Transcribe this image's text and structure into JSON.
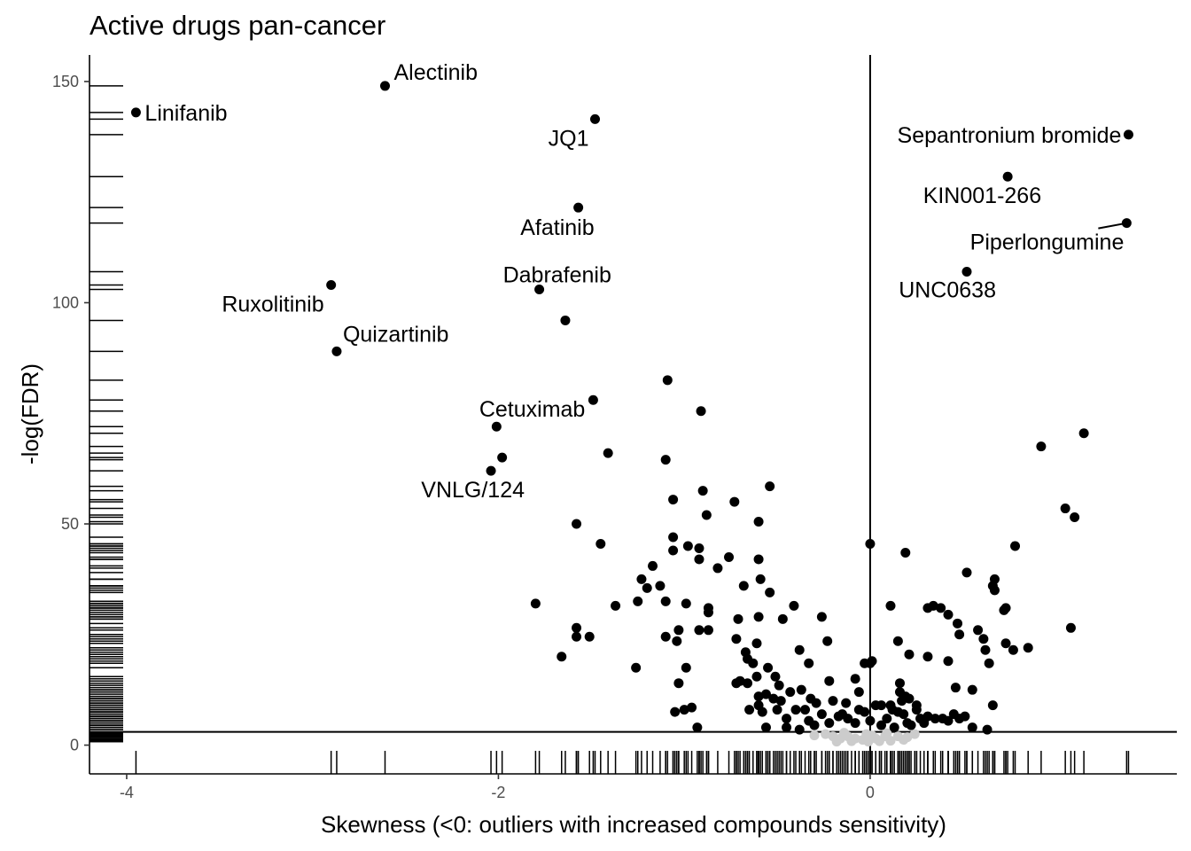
{
  "chart_data": {
    "type": "scatter",
    "title": "Active drugs pan-cancer",
    "xlabel": "Skewness (<0: outliers with increased compounds sensitivity)",
    "ylabel": "-log(FDR)",
    "xlim": [
      -4.2,
      1.65
    ],
    "ylim": [
      -6.5,
      156
    ],
    "x_ticks": [
      -4,
      -2,
      0
    ],
    "y_ticks": [
      0,
      50,
      100,
      150
    ],
    "x_tick_labels": [
      "-4",
      "-2",
      "0"
    ],
    "y_tick_labels": [
      "0",
      "50",
      "100",
      "150"
    ],
    "hline": 3,
    "vline": 0,
    "rug": true,
    "grid": false,
    "legend": "none",
    "colors": {
      "significant": "#000000",
      "non_significant": "#cccccc"
    },
    "labeled_points": [
      {
        "label": "Alectinib",
        "x": -2.61,
        "y": 149
      },
      {
        "label": "Linifanib",
        "x": -3.95,
        "y": 143
      },
      {
        "label": "JQ1",
        "x": -1.48,
        "y": 141.5
      },
      {
        "label": "Sepantronium bromide",
        "x": 1.39,
        "y": 138
      },
      {
        "label": "KIN001-266",
        "x": 0.74,
        "y": 128.5
      },
      {
        "label": "Afatinib",
        "x": -1.57,
        "y": 121.5
      },
      {
        "label": "Piperlongumine",
        "x": 1.38,
        "y": 118
      },
      {
        "label": "UNC0638",
        "x": 0.52,
        "y": 107
      },
      {
        "label": "Ruxolitinib",
        "x": -2.9,
        "y": 104
      },
      {
        "label": "Dabrafenib",
        "x": -1.78,
        "y": 103
      },
      {
        "label": "Quizartinib",
        "x": -2.87,
        "y": 89
      },
      {
        "label": "Cetuximab",
        "x": -2.01,
        "y": 72
      },
      {
        "label": "VNLG/124",
        "x": -2.04,
        "y": 62
      }
    ],
    "points_significant": [
      [
        -1.64,
        96
      ],
      [
        -1.49,
        78
      ],
      [
        -1.98,
        65
      ],
      [
        -1.09,
        82.5
      ],
      [
        -0.91,
        75.5
      ],
      [
        -1.41,
        66
      ],
      [
        -1.1,
        64.5
      ],
      [
        -1.58,
        50
      ],
      [
        -1.45,
        45.5
      ],
      [
        -1.06,
        55.5
      ],
      [
        -0.9,
        57.5
      ],
      [
        -0.54,
        58.5
      ],
      [
        -0.73,
        55
      ],
      [
        -0.6,
        50.5
      ],
      [
        -0.88,
        52
      ],
      [
        -0.98,
        45
      ],
      [
        -1.06,
        47
      ],
      [
        -1.06,
        44
      ],
      [
        -0.92,
        44.5
      ],
      [
        -0.92,
        42
      ],
      [
        -0.76,
        42.5
      ],
      [
        -0.82,
        40
      ],
      [
        -0.6,
        42
      ],
      [
        -0.59,
        37.5
      ],
      [
        -0.54,
        34.5
      ],
      [
        -0.68,
        36
      ],
      [
        -1.17,
        40.5
      ],
      [
        -1.23,
        37.5
      ],
      [
        -1.2,
        35.5
      ],
      [
        -1.13,
        36
      ],
      [
        -1.25,
        32.5
      ],
      [
        -1.1,
        32.5
      ],
      [
        -0.99,
        32
      ],
      [
        -0.87,
        31
      ],
      [
        -0.87,
        30
      ],
      [
        -0.92,
        26
      ],
      [
        -0.87,
        26
      ],
      [
        -0.71,
        28.5
      ],
      [
        -0.6,
        29
      ],
      [
        -0.47,
        28.5
      ],
      [
        -0.41,
        31.5
      ],
      [
        -0.26,
        29
      ],
      [
        -1.37,
        31.5
      ],
      [
        -1.8,
        32
      ],
      [
        -1.58,
        26.5
      ],
      [
        -1.58,
        24.5
      ],
      [
        -1.51,
        24.5
      ],
      [
        -1.66,
        20
      ],
      [
        -1.26,
        17.5
      ],
      [
        -1.1,
        24.5
      ],
      [
        -1.03,
        26
      ],
      [
        -1.04,
        23.5
      ],
      [
        -0.72,
        24
      ],
      [
        -0.61,
        23
      ],
      [
        -0.66,
        19.5
      ],
      [
        -0.67,
        21
      ],
      [
        -0.63,
        18.5
      ],
      [
        -0.55,
        17.5
      ],
      [
        -0.51,
        15.5
      ],
      [
        -0.49,
        13.5
      ],
      [
        -0.38,
        21.5
      ],
      [
        -0.33,
        18.5
      ],
      [
        -0.23,
        23.5
      ],
      [
        -0.22,
        14.5
      ],
      [
        -0.08,
        15
      ],
      [
        -0.03,
        18.5
      ],
      [
        -0.99,
        17.5
      ],
      [
        -1.03,
        14
      ],
      [
        -1.0,
        8
      ],
      [
        -0.96,
        8.5
      ],
      [
        -1.05,
        7.5
      ],
      [
        -0.93,
        4
      ],
      [
        -0.7,
        14.5
      ],
      [
        -0.72,
        14
      ],
      [
        -0.66,
        14
      ],
      [
        -0.61,
        15.5
      ],
      [
        -0.6,
        11
      ],
      [
        -0.56,
        11.5
      ],
      [
        -0.52,
        10.5
      ],
      [
        -0.48,
        10
      ],
      [
        -0.43,
        12
      ],
      [
        -0.37,
        12.5
      ],
      [
        -0.32,
        10.5
      ],
      [
        -0.29,
        9.5
      ],
      [
        -0.2,
        10
      ],
      [
        -0.13,
        9.5
      ],
      [
        -0.06,
        8
      ],
      [
        -0.65,
        8
      ],
      [
        -0.58,
        7.5
      ],
      [
        -0.56,
        4
      ],
      [
        -0.45,
        4
      ],
      [
        -0.38,
        3.5
      ],
      [
        -0.33,
        5.5
      ],
      [
        -0.3,
        4.5
      ],
      [
        -0.26,
        7
      ],
      [
        -0.22,
        5
      ],
      [
        -0.17,
        6.5
      ],
      [
        -0.12,
        6
      ],
      [
        -0.08,
        5
      ],
      [
        -0.03,
        7.5
      ],
      [
        0.0,
        45.5
      ],
      [
        0.19,
        43.5
      ],
      [
        0.11,
        31.5
      ],
      [
        0.15,
        23.5
      ],
      [
        0.21,
        20.5
      ],
      [
        0.31,
        20
      ],
      [
        0.31,
        31
      ],
      [
        0.34,
        31.5
      ],
      [
        0.38,
        31
      ],
      [
        0.42,
        29.5
      ],
      [
        0.47,
        27.5
      ],
      [
        0.48,
        25
      ],
      [
        0.52,
        39
      ],
      [
        0.42,
        19
      ],
      [
        0.46,
        13
      ],
      [
        0.58,
        26
      ],
      [
        0.61,
        24
      ],
      [
        0.62,
        21.5
      ],
      [
        0.64,
        18.5
      ],
      [
        0.55,
        12.5
      ],
      [
        0.51,
        6.5
      ],
      [
        0.63,
        3.5
      ],
      [
        0.66,
        9
      ],
      [
        0.66,
        36
      ],
      [
        0.67,
        35
      ],
      [
        0.72,
        30.5
      ],
      [
        0.73,
        31
      ],
      [
        0.73,
        23
      ],
      [
        0.77,
        21.5
      ],
      [
        0.85,
        22
      ],
      [
        0.78,
        45
      ],
      [
        0.67,
        37.5
      ],
      [
        0.16,
        14
      ],
      [
        0.16,
        12
      ],
      [
        0.19,
        11
      ],
      [
        0.21,
        10.5
      ],
      [
        0.25,
        9
      ],
      [
        0.12,
        8
      ],
      [
        0.15,
        7.5
      ],
      [
        0.09,
        6
      ],
      [
        0.06,
        4.5
      ],
      [
        0.25,
        8
      ],
      [
        0.31,
        6.5
      ],
      [
        0.35,
        6
      ],
      [
        0.39,
        6
      ],
      [
        0.22,
        4.5
      ],
      [
        0.18,
        7
      ],
      [
        0.27,
        6
      ],
      [
        0.29,
        5
      ],
      [
        0.03,
        9
      ],
      [
        0.06,
        9
      ],
      [
        0.11,
        9
      ],
      [
        0.17,
        10
      ],
      [
        0.01,
        19
      ],
      [
        -0.06,
        12
      ],
      [
        0.0,
        5.5
      ],
      [
        0.0,
        18.5
      ],
      [
        0.92,
        67.5
      ],
      [
        1.15,
        70.5
      ],
      [
        1.05,
        53.5
      ],
      [
        1.1,
        51.5
      ],
      [
        1.08,
        26.5
      ],
      [
        0.55,
        4
      ],
      [
        0.48,
        6
      ],
      [
        0.42,
        5.5
      ],
      [
        0.45,
        7
      ],
      [
        -0.4,
        8
      ],
      [
        -0.5,
        8
      ],
      [
        -0.6,
        9
      ],
      [
        -0.45,
        6
      ],
      [
        -0.35,
        8
      ],
      [
        -0.15,
        7
      ],
      [
        0.2,
        5
      ],
      [
        0.13,
        4
      ]
    ],
    "points_nonsignificant": [
      [
        -0.24,
        2.5
      ],
      [
        -0.2,
        2.0
      ],
      [
        -0.16,
        1.5
      ],
      [
        -0.12,
        2.0
      ],
      [
        -0.08,
        1.5
      ],
      [
        -0.04,
        1.2
      ],
      [
        -0.01,
        0.8
      ],
      [
        0.03,
        1.5
      ],
      [
        0.08,
        2.0
      ],
      [
        0.11,
        1.0
      ],
      [
        0.15,
        2.0
      ],
      [
        0.2,
        1.8
      ],
      [
        -0.3,
        2.2
      ],
      [
        0.24,
        2.5
      ],
      [
        -0.18,
        0.8
      ],
      [
        -0.02,
        2.5
      ],
      [
        0.05,
        0.9
      ],
      [
        -0.1,
        0.9
      ],
      [
        0.01,
        2.2
      ],
      [
        0.18,
        1.2
      ],
      [
        -0.14,
        2.8
      ],
      [
        0.09,
        2.7
      ]
    ]
  }
}
